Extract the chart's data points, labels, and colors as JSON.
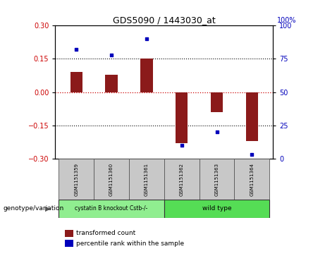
{
  "title": "GDS5090 / 1443030_at",
  "samples": [
    "GSM1151359",
    "GSM1151360",
    "GSM1151361",
    "GSM1151362",
    "GSM1151363",
    "GSM1151364"
  ],
  "bar_values": [
    0.09,
    0.08,
    0.15,
    -0.23,
    -0.09,
    -0.22
  ],
  "percentile_values": [
    82,
    78,
    90,
    10,
    20,
    3
  ],
  "groups": [
    {
      "label": "cystatin B knockout Cstb-/-",
      "indices": [
        0,
        1,
        2
      ],
      "color": "#66dd66"
    },
    {
      "label": "wild type",
      "indices": [
        3,
        4,
        5
      ],
      "color": "#66dd66"
    }
  ],
  "ylim_left": [
    -0.3,
    0.3
  ],
  "ylim_right": [
    0,
    100
  ],
  "yticks_left": [
    -0.3,
    -0.15,
    0,
    0.15,
    0.3
  ],
  "yticks_right": [
    0,
    25,
    50,
    75,
    100
  ],
  "bar_color": "#8b1a1a",
  "scatter_color": "#0000bb",
  "hline_color": "#cc0000",
  "dotted_color": "black",
  "bg_color": "#ffffff",
  "plot_bg": "#ffffff",
  "genotype_label": "genotype/variation",
  "legend_bar": "transformed count",
  "legend_scatter": "percentile rank within the sample",
  "bar_width": 0.35,
  "sample_box_color": "#c8c8c8",
  "right_axis_top_label": "100%"
}
